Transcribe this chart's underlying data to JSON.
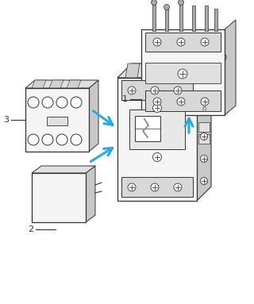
{
  "background_color": "#ffffff",
  "figure_width": 3.2,
  "figure_height": 3.83,
  "dpi": 100,
  "label_1": "1",
  "label_2": "2",
  "label_3": "3",
  "arrow_color": "#2aabdf",
  "ec": "#333333",
  "fc_main": "#f5f5f5",
  "fc_dark": "#d8d8d8",
  "fc_side": "#c8c8c8",
  "fc_top": "#e0e0e0"
}
